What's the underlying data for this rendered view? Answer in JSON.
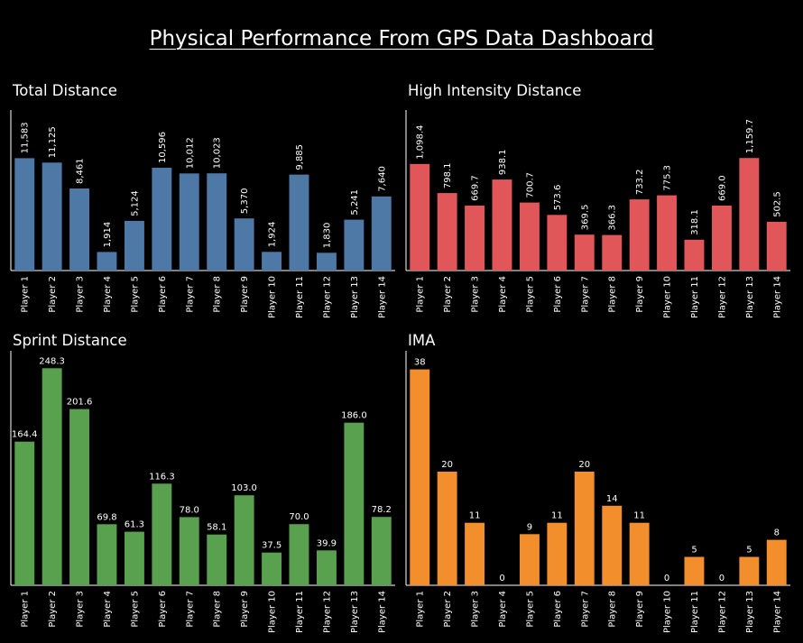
{
  "dashboard_title": "Physical Performance From GPS Data Dashboard",
  "chart_data": [
    {
      "type": "bar",
      "title": "Total Distance",
      "color": "#4e79a7",
      "label_orientation": "vertical",
      "categories": [
        "Player 1",
        "Player 2",
        "Player 3",
        "Player 4",
        "Player 5",
        "Player 6",
        "Player 7",
        "Player 8",
        "Player 9",
        "Player 10",
        "Player 11",
        "Player 12",
        "Player 13",
        "Player 14"
      ],
      "values": [
        11583,
        11125,
        8461,
        1914,
        5124,
        10596,
        10012,
        10023,
        5370,
        1924,
        9885,
        1830,
        5241,
        7640
      ],
      "value_labels": [
        "11,583",
        "11,125",
        "8,461",
        "1,914",
        "5,124",
        "10,596",
        "10,012",
        "10,023",
        "5,370",
        "1,924",
        "9,885",
        "1,830",
        "5,241",
        "7,640"
      ],
      "ylim": [
        0,
        15800
      ]
    },
    {
      "type": "bar",
      "title": "High Intensity Distance",
      "color": "#e15759",
      "label_orientation": "vertical",
      "categories": [
        "Player 1",
        "Player 2",
        "Player 3",
        "Player 4",
        "Player 5",
        "Player 6",
        "Player 7",
        "Player 8",
        "Player 9",
        "Player 10",
        "Player 11",
        "Player 12",
        "Player 13",
        "Player 14"
      ],
      "values": [
        1098.4,
        798.1,
        669.7,
        938.1,
        700.7,
        573.6,
        369.5,
        366.3,
        733.2,
        775.3,
        318.1,
        669.0,
        1159.7,
        502.5
      ],
      "value_labels": [
        "1,098.4",
        "798.1",
        "669.7",
        "938.1",
        "700.7",
        "573.6",
        "369.5",
        "366.3",
        "733.2",
        "775.3",
        "318.1",
        "669.0",
        "1,159.7",
        "502.5"
      ],
      "ylim": [
        0,
        1580
      ]
    },
    {
      "type": "bar",
      "title": "Sprint Distance",
      "color": "#59a14f",
      "label_orientation": "horizontal",
      "categories": [
        "Player 1",
        "Player 2",
        "Player 3",
        "Player 4",
        "Player 5",
        "Player 6",
        "Player 7",
        "Player 8",
        "Player 9",
        "Player 10",
        "Player 11",
        "Player 12",
        "Player 13",
        "Player 14"
      ],
      "values": [
        164.4,
        248.3,
        201.6,
        69.8,
        61.3,
        116.3,
        78.0,
        58.1,
        103.0,
        37.5,
        70.0,
        39.9,
        186.0,
        78.2
      ],
      "value_labels": [
        "164.4",
        "248.3",
        "201.6",
        "69.8",
        "61.3",
        "116.3",
        "78.0",
        "58.1",
        "103.0",
        "37.5",
        "70.0",
        "39.9",
        "186.0",
        "78.2"
      ],
      "ylim": [
        0,
        260
      ]
    },
    {
      "type": "bar",
      "title": "IMA",
      "color": "#f28e2b",
      "label_orientation": "horizontal",
      "categories": [
        "Player 1",
        "Player 2",
        "Player 3",
        "Player 4",
        "Player 5",
        "Player 6",
        "Player 7",
        "Player 8",
        "Player 9",
        "Player 10",
        "Player 11",
        "Player 12",
        "Player 13",
        "Player 14"
      ],
      "values": [
        38,
        20,
        11,
        0,
        9,
        11,
        20,
        14,
        11,
        0,
        5,
        0,
        5,
        8
      ],
      "value_labels": [
        "38",
        "20",
        "11",
        "0",
        "9",
        "11",
        "20",
        "14",
        "11",
        "0",
        "5",
        "0",
        "5",
        "8"
      ],
      "ylim": [
        0,
        40
      ]
    }
  ]
}
